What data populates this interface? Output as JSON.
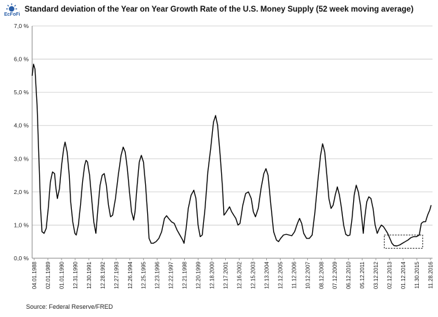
{
  "logo": {
    "text": "EcFoFi",
    "icon": "sun-logo-icon",
    "color": "#2a5fa8"
  },
  "chart_data": {
    "type": "line",
    "title": "Standard deviation of the Year on Year Growth Rate of the U.S. Money Supply (52 week moving average)",
    "xlabel": "",
    "ylabel": "",
    "ylim": [
      0,
      7
    ],
    "y_ticks": [
      "0,0 %",
      "1,0 %",
      "2,0 %",
      "3,0 %",
      "4,0 %",
      "5,0 %",
      "6,0 %",
      "7,0 %"
    ],
    "x_ticks": [
      "04.01.1988",
      "02.01.1989",
      "01.01.1990",
      "12.31.1990",
      "12.30.1991",
      "12.28.1992",
      "12.27.1993",
      "12.26.1994",
      "12.25.1995",
      "12.23.1996",
      "12.22.1997",
      "12.21.1998",
      "12.20.1999",
      "12.18.2000",
      "12.17.2001",
      "12.16.2002",
      "12.15.2003",
      "12.13.2004",
      "12.12.2005",
      "11.12.2006",
      "10.12.2007",
      "08.12.2008",
      "07.12.2009",
      "06.12.2010",
      "05.12.2011",
      "03.12.2012",
      "02.12.2013",
      "01.12.2014",
      "11.30.2015",
      "11.28.2016"
    ],
    "grid": true,
    "line_color": "#000000",
    "series": [
      {
        "values": [
          [
            1988.25,
            5.5
          ],
          [
            1988.35,
            5.85
          ],
          [
            1988.45,
            5.7
          ],
          [
            1988.6,
            4.6
          ],
          [
            1988.75,
            2.8
          ],
          [
            1988.85,
            1.5
          ],
          [
            1988.95,
            0.8
          ],
          [
            1989.1,
            0.75
          ],
          [
            1989.25,
            0.9
          ],
          [
            1989.4,
            1.5
          ],
          [
            1989.55,
            2.3
          ],
          [
            1989.7,
            2.6
          ],
          [
            1989.85,
            2.55
          ],
          [
            1989.95,
            2.1
          ],
          [
            1990.05,
            1.8
          ],
          [
            1990.2,
            2.1
          ],
          [
            1990.35,
            2.8
          ],
          [
            1990.5,
            3.3
          ],
          [
            1990.6,
            3.5
          ],
          [
            1990.75,
            3.2
          ],
          [
            1990.9,
            2.5
          ],
          [
            1991.0,
            1.7
          ],
          [
            1991.15,
            1.1
          ],
          [
            1991.3,
            0.75
          ],
          [
            1991.4,
            0.7
          ],
          [
            1991.55,
            1.0
          ],
          [
            1991.7,
            1.6
          ],
          [
            1991.85,
            2.3
          ],
          [
            1992.0,
            2.8
          ],
          [
            1992.1,
            2.95
          ],
          [
            1992.2,
            2.9
          ],
          [
            1992.35,
            2.5
          ],
          [
            1992.5,
            1.8
          ],
          [
            1992.65,
            1.1
          ],
          [
            1992.8,
            0.75
          ],
          [
            1992.95,
            1.5
          ],
          [
            1993.1,
            2.2
          ],
          [
            1993.25,
            2.5
          ],
          [
            1993.4,
            2.55
          ],
          [
            1993.55,
            2.2
          ],
          [
            1993.7,
            1.6
          ],
          [
            1993.85,
            1.25
          ],
          [
            1994.0,
            1.3
          ],
          [
            1994.2,
            1.8
          ],
          [
            1994.4,
            2.5
          ],
          [
            1994.6,
            3.1
          ],
          [
            1994.75,
            3.35
          ],
          [
            1994.9,
            3.2
          ],
          [
            1995.05,
            2.7
          ],
          [
            1995.2,
            2.0
          ],
          [
            1995.35,
            1.4
          ],
          [
            1995.5,
            1.15
          ],
          [
            1995.6,
            1.4
          ],
          [
            1995.75,
            2.2
          ],
          [
            1995.9,
            2.9
          ],
          [
            1996.05,
            3.1
          ],
          [
            1996.2,
            2.9
          ],
          [
            1996.35,
            2.2
          ],
          [
            1996.5,
            1.3
          ],
          [
            1996.6,
            0.6
          ],
          [
            1996.75,
            0.45
          ],
          [
            1996.9,
            0.45
          ],
          [
            1997.1,
            0.5
          ],
          [
            1997.3,
            0.6
          ],
          [
            1997.5,
            0.8
          ],
          [
            1997.7,
            1.2
          ],
          [
            1997.85,
            1.28
          ],
          [
            1998.0,
            1.2
          ],
          [
            1998.2,
            1.1
          ],
          [
            1998.4,
            1.05
          ],
          [
            1998.6,
            0.85
          ],
          [
            1998.8,
            0.7
          ],
          [
            1999.0,
            0.55
          ],
          [
            1999.1,
            0.45
          ],
          [
            1999.25,
            0.9
          ],
          [
            1999.4,
            1.5
          ],
          [
            1999.6,
            1.9
          ],
          [
            1999.8,
            2.05
          ],
          [
            1999.95,
            1.8
          ],
          [
            2000.1,
            1.0
          ],
          [
            2000.25,
            0.65
          ],
          [
            2000.4,
            0.7
          ],
          [
            2000.6,
            1.5
          ],
          [
            2000.8,
            2.6
          ],
          [
            2001.0,
            3.3
          ],
          [
            2001.2,
            4.1
          ],
          [
            2001.35,
            4.3
          ],
          [
            2001.5,
            4.0
          ],
          [
            2001.7,
            3.0
          ],
          [
            2001.85,
            2.1
          ],
          [
            2001.95,
            1.3
          ],
          [
            2002.05,
            1.35
          ],
          [
            2002.2,
            1.45
          ],
          [
            2002.35,
            1.55
          ],
          [
            2002.5,
            1.4
          ],
          [
            2002.65,
            1.3
          ],
          [
            2002.8,
            1.2
          ],
          [
            2002.95,
            1.0
          ],
          [
            2003.1,
            1.05
          ],
          [
            2003.3,
            1.6
          ],
          [
            2003.5,
            1.95
          ],
          [
            2003.7,
            2.0
          ],
          [
            2003.9,
            1.8
          ],
          [
            2004.05,
            1.4
          ],
          [
            2004.2,
            1.25
          ],
          [
            2004.4,
            1.5
          ],
          [
            2004.6,
            2.1
          ],
          [
            2004.8,
            2.55
          ],
          [
            2004.95,
            2.7
          ],
          [
            2005.1,
            2.5
          ],
          [
            2005.3,
            1.6
          ],
          [
            2005.5,
            0.8
          ],
          [
            2005.7,
            0.55
          ],
          [
            2005.85,
            0.5
          ],
          [
            2006.0,
            0.6
          ],
          [
            2006.2,
            0.7
          ],
          [
            2006.4,
            0.72
          ],
          [
            2006.6,
            0.7
          ],
          [
            2006.8,
            0.68
          ],
          [
            2007.0,
            0.8
          ],
          [
            2007.2,
            1.05
          ],
          [
            2007.35,
            1.2
          ],
          [
            2007.5,
            1.05
          ],
          [
            2007.65,
            0.75
          ],
          [
            2007.85,
            0.6
          ],
          [
            2008.05,
            0.6
          ],
          [
            2008.25,
            0.7
          ],
          [
            2008.45,
            1.4
          ],
          [
            2008.65,
            2.3
          ],
          [
            2008.85,
            3.1
          ],
          [
            2009.0,
            3.45
          ],
          [
            2009.15,
            3.2
          ],
          [
            2009.3,
            2.5
          ],
          [
            2009.45,
            1.8
          ],
          [
            2009.6,
            1.5
          ],
          [
            2009.75,
            1.6
          ],
          [
            2009.9,
            1.9
          ],
          [
            2010.05,
            2.15
          ],
          [
            2010.2,
            1.9
          ],
          [
            2010.35,
            1.5
          ],
          [
            2010.5,
            1.0
          ],
          [
            2010.65,
            0.72
          ],
          [
            2010.8,
            0.68
          ],
          [
            2010.95,
            0.7
          ],
          [
            2011.1,
            1.2
          ],
          [
            2011.25,
            1.9
          ],
          [
            2011.4,
            2.2
          ],
          [
            2011.55,
            2.0
          ],
          [
            2011.7,
            1.6
          ],
          [
            2011.8,
            1.2
          ],
          [
            2011.9,
            0.75
          ],
          [
            2012.0,
            1.2
          ],
          [
            2012.15,
            1.7
          ],
          [
            2012.3,
            1.85
          ],
          [
            2012.45,
            1.8
          ],
          [
            2012.6,
            1.5
          ],
          [
            2012.75,
            1.0
          ],
          [
            2012.9,
            0.75
          ],
          [
            2013.05,
            0.9
          ],
          [
            2013.2,
            1.0
          ],
          [
            2013.35,
            0.95
          ],
          [
            2013.5,
            0.85
          ],
          [
            2013.65,
            0.75
          ],
          [
            2013.8,
            0.6
          ],
          [
            2013.95,
            0.45
          ],
          [
            2014.1,
            0.38
          ],
          [
            2014.3,
            0.37
          ],
          [
            2014.5,
            0.4
          ],
          [
            2014.7,
            0.45
          ],
          [
            2014.9,
            0.5
          ],
          [
            2015.1,
            0.55
          ],
          [
            2015.3,
            0.62
          ],
          [
            2015.5,
            0.65
          ],
          [
            2015.7,
            0.65
          ],
          [
            2015.9,
            0.7
          ],
          [
            2016.05,
            1.05
          ],
          [
            2016.2,
            1.1
          ],
          [
            2016.35,
            1.1
          ],
          [
            2016.5,
            1.3
          ],
          [
            2016.65,
            1.45
          ],
          [
            2016.75,
            1.6
          ]
        ]
      }
    ],
    "highlight_box": {
      "x_range": [
        2013.4,
        2016.15
      ],
      "y_range": [
        0.3,
        0.7
      ],
      "style": "dotted"
    },
    "source": "Source: Federal Reserve/FRED"
  }
}
